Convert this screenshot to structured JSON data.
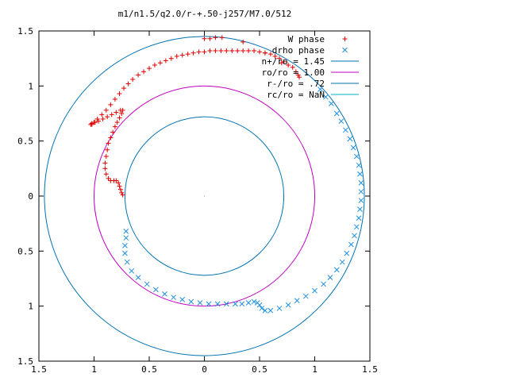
{
  "chart_data": {
    "type": "scatter",
    "title": "m1/n1.5/q2.0/r-+.50-j257/M7.0/512",
    "xlabel": "",
    "ylabel": "",
    "xlim": [
      -1.5,
      1.5
    ],
    "ylim": [
      -1.5,
      1.5
    ],
    "grid": false,
    "legend_position": "top-right",
    "x_ticks": [
      {
        "value": -1.5,
        "label": "1.5"
      },
      {
        "value": -1.0,
        "label": "1"
      },
      {
        "value": -0.5,
        "label": "0.5"
      },
      {
        "value": 0.0,
        "label": "0"
      },
      {
        "value": 0.5,
        "label": "0.5"
      },
      {
        "value": 1.0,
        "label": "1"
      },
      {
        "value": 1.5,
        "label": "1.5"
      }
    ],
    "y_ticks": [
      {
        "value": 1.5,
        "label": "1.5"
      },
      {
        "value": 1.0,
        "label": "1"
      },
      {
        "value": 0.5,
        "label": "0.5"
      },
      {
        "value": 0.0,
        "label": "0"
      },
      {
        "value": -0.5,
        "label": "0.5"
      },
      {
        "value": -1.0,
        "label": "1"
      },
      {
        "value": -1.5,
        "label": "1.5"
      }
    ],
    "circles": [
      {
        "name": "n+/ro = 1.45",
        "radius": 1.45,
        "color": "#0072b2"
      },
      {
        "name": "ro/ro = 1.00",
        "radius": 1.0,
        "color": "#c000c0"
      },
      {
        "name": "r-/ro = .72",
        "radius": 0.72,
        "color": "#0072b2"
      },
      {
        "name": "rc/ro = NaN",
        "radius": null,
        "color": "#00b0c0"
      }
    ],
    "series": [
      {
        "name": "W phase",
        "marker": "plus",
        "color": "#e00000",
        "points": [
          [
            0.86,
            1.08
          ],
          [
            0.85,
            1.1
          ],
          [
            0.83,
            1.13
          ],
          [
            0.8,
            1.17
          ],
          [
            0.76,
            1.19
          ],
          [
            0.72,
            1.22
          ],
          [
            0.68,
            1.25
          ],
          [
            0.64,
            1.27
          ],
          [
            0.6,
            1.29
          ],
          [
            0.55,
            1.3
          ],
          [
            0.5,
            1.31
          ],
          [
            0.45,
            1.32
          ],
          [
            0.4,
            1.32
          ],
          [
            0.35,
            1.32
          ],
          [
            0.3,
            1.32
          ],
          [
            0.25,
            1.32
          ],
          [
            0.2,
            1.32
          ],
          [
            0.15,
            1.32
          ],
          [
            0.1,
            1.32
          ],
          [
            0.05,
            1.32
          ],
          [
            0.0,
            1.31
          ],
          [
            -0.05,
            1.31
          ],
          [
            -0.1,
            1.3
          ],
          [
            -0.15,
            1.29
          ],
          [
            -0.2,
            1.28
          ],
          [
            -0.25,
            1.27
          ],
          [
            -0.3,
            1.25
          ],
          [
            -0.35,
            1.23
          ],
          [
            -0.4,
            1.21
          ],
          [
            -0.45,
            1.19
          ],
          [
            -0.5,
            1.16
          ],
          [
            -0.55,
            1.13
          ],
          [
            -0.6,
            1.1
          ],
          [
            -0.65,
            1.06
          ],
          [
            -0.69,
            1.02
          ],
          [
            -0.73,
            0.98
          ],
          [
            -0.77,
            0.93
          ],
          [
            -0.81,
            0.88
          ],
          [
            -0.85,
            0.83
          ],
          [
            -0.89,
            0.78
          ],
          [
            -0.93,
            0.74
          ],
          [
            -0.97,
            0.7
          ],
          [
            -1.0,
            0.67
          ],
          [
            -1.02,
            0.65
          ],
          [
            -1.03,
            0.65
          ],
          [
            -1.02,
            0.66
          ],
          [
            -0.99,
            0.67
          ],
          [
            -0.96,
            0.68
          ],
          [
            -0.92,
            0.7
          ],
          [
            -0.88,
            0.72
          ],
          [
            -0.84,
            0.74
          ],
          [
            -0.8,
            0.76
          ],
          [
            -0.76,
            0.78
          ],
          [
            -0.74,
            0.78
          ],
          [
            -0.75,
            0.75
          ],
          [
            -0.77,
            0.71
          ],
          [
            -0.79,
            0.67
          ],
          [
            -0.81,
            0.63
          ],
          [
            -0.83,
            0.58
          ],
          [
            -0.85,
            0.53
          ],
          [
            -0.87,
            0.48
          ],
          [
            -0.88,
            0.42
          ],
          [
            -0.89,
            0.36
          ],
          [
            -0.9,
            0.3
          ],
          [
            -0.9,
            0.25
          ],
          [
            -0.89,
            0.2
          ],
          [
            -0.87,
            0.16
          ],
          [
            -0.85,
            0.14
          ],
          [
            -0.82,
            0.14
          ],
          [
            -0.8,
            0.14
          ],
          [
            -0.78,
            0.12
          ],
          [
            -0.77,
            0.09
          ],
          [
            -0.76,
            0.06
          ],
          [
            -0.75,
            0.03
          ],
          [
            -0.74,
            0.01
          ],
          [
            0.16,
            1.44
          ],
          [
            0.1,
            1.44
          ],
          [
            0.05,
            1.43
          ],
          [
            0.0,
            1.43
          ],
          [
            0.35,
            1.4
          ],
          [
            0.55,
            1.3
          ],
          [
            0.7,
            1.21
          ]
        ]
      },
      {
        "name": "drho phase",
        "marker": "cross",
        "color": "#1e90e0",
        "points": [
          [
            1.05,
            0.97
          ],
          [
            1.1,
            0.9
          ],
          [
            1.15,
            0.84
          ],
          [
            1.2,
            0.75
          ],
          [
            1.24,
            0.68
          ],
          [
            1.28,
            0.6
          ],
          [
            1.32,
            0.52
          ],
          [
            1.35,
            0.44
          ],
          [
            1.38,
            0.36
          ],
          [
            1.4,
            0.28
          ],
          [
            1.41,
            0.2
          ],
          [
            1.42,
            0.12
          ],
          [
            1.42,
            0.04
          ],
          [
            1.42,
            -0.04
          ],
          [
            1.41,
            -0.12
          ],
          [
            1.4,
            -0.2
          ],
          [
            1.38,
            -0.28
          ],
          [
            1.36,
            -0.36
          ],
          [
            1.33,
            -0.44
          ],
          [
            1.29,
            -0.52
          ],
          [
            1.25,
            -0.6
          ],
          [
            1.2,
            -0.67
          ],
          [
            1.14,
            -0.74
          ],
          [
            1.08,
            -0.8
          ],
          [
            1.0,
            -0.86
          ],
          [
            0.92,
            -0.91
          ],
          [
            0.84,
            -0.95
          ],
          [
            0.76,
            -0.99
          ],
          [
            0.68,
            -1.02
          ],
          [
            0.6,
            -1.04
          ],
          [
            0.55,
            -1.04
          ],
          [
            0.52,
            -1.02
          ],
          [
            0.5,
            -0.99
          ],
          [
            0.48,
            -0.97
          ],
          [
            0.45,
            -0.96
          ],
          [
            0.4,
            -0.97
          ],
          [
            0.34,
            -0.98
          ],
          [
            0.28,
            -0.98
          ],
          [
            0.2,
            -0.98
          ],
          [
            0.12,
            -0.98
          ],
          [
            0.04,
            -0.98
          ],
          [
            -0.04,
            -0.97
          ],
          [
            -0.12,
            -0.96
          ],
          [
            -0.2,
            -0.94
          ],
          [
            -0.28,
            -0.92
          ],
          [
            -0.36,
            -0.89
          ],
          [
            -0.44,
            -0.85
          ],
          [
            -0.52,
            -0.8
          ],
          [
            -0.6,
            -0.74
          ],
          [
            -0.66,
            -0.68
          ],
          [
            -0.7,
            -0.6
          ],
          [
            -0.72,
            -0.52
          ],
          [
            -0.72,
            -0.45
          ],
          [
            -0.71,
            -0.38
          ],
          [
            -0.71,
            -0.32
          ]
        ]
      }
    ]
  }
}
